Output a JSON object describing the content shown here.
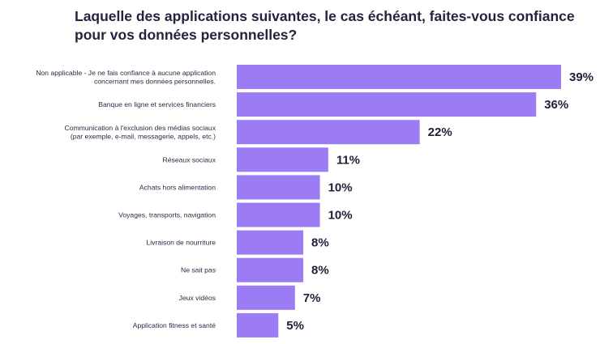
{
  "colors": {
    "bar": "#9b7cf4",
    "text": "#24243f"
  },
  "chart_data": {
    "type": "bar",
    "orientation": "horizontal",
    "title": "Laquelle des applications suivantes, le cas échéant, faites-vous confiance pour vos données personnelles?",
    "categories": [
      [
        "Non applicable - Je ne fais confiance à aucune application",
        "concernant mes données personnelles."
      ],
      [
        "Banque en ligne et services financiers"
      ],
      [
        "Communication à l'exclusion des médias sociaux",
        "(par exemple, e-mail, messagerie, appels, etc.)"
      ],
      [
        "Réseaux sociaux"
      ],
      [
        "Achats hors alimentation"
      ],
      [
        "Voyages, transports, navigation"
      ],
      [
        "Livraison de nourriture"
      ],
      [
        "Ne sait pas"
      ],
      [
        "Jeux vidéos"
      ],
      [
        "Application fitness et santé"
      ]
    ],
    "values": [
      39,
      36,
      22,
      11,
      10,
      10,
      8,
      8,
      7,
      5
    ],
    "value_labels": [
      "39%",
      "36%",
      "22%",
      "11%",
      "10%",
      "10%",
      "8%",
      "8%",
      "7%",
      "5%"
    ],
    "xlim": [
      0,
      39
    ],
    "grid": false,
    "legend": "none"
  }
}
